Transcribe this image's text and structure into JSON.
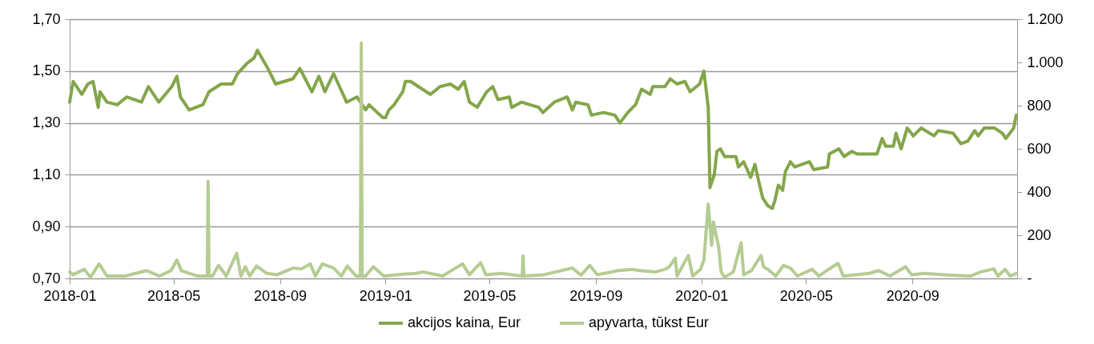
{
  "chart_data": {
    "type": "line",
    "legend": "bottom",
    "grid": "y",
    "line_style": "solid",
    "xlim": [
      "2018-01-01",
      "2020-12-31"
    ],
    "xticks": [
      "2018-01",
      "2018-05",
      "2018-09",
      "2019-01",
      "2019-05",
      "2019-09",
      "2020-01",
      "2020-05",
      "2020-09"
    ],
    "ylim": [
      0.7,
      1.7
    ],
    "yticks": [
      {
        "value": 0.7,
        "label": "0,70"
      },
      {
        "value": 0.9,
        "label": "0,90"
      },
      {
        "value": 1.1,
        "label": "1,10"
      },
      {
        "value": 1.3,
        "label": "1,30"
      },
      {
        "value": 1.5,
        "label": "1,50"
      },
      {
        "value": 1.7,
        "label": "1,70"
      }
    ],
    "y2lim": [
      0,
      1200
    ],
    "y2ticks": [
      {
        "value": 0,
        "label": "-"
      },
      200,
      400,
      600,
      800,
      {
        "value": 1000,
        "label": "1.000"
      },
      {
        "value": 1200,
        "label": "1.200"
      }
    ],
    "series": [
      {
        "name": "akcijos kaina, Eur",
        "color": "#84a64b",
        "x": [
          "2018-01-01",
          "2018-01-05",
          "2018-01-15",
          "2018-01-22",
          "2018-01-28",
          "2018-02-03",
          "2018-02-05",
          "2018-02-13",
          "2018-02-25",
          "2018-03-08",
          "2018-03-25",
          "2018-04-02",
          "2018-04-14",
          "2018-04-29",
          "2018-05-05",
          "2018-05-09",
          "2018-05-19",
          "2018-06-04",
          "2018-06-11",
          "2018-06-25",
          "2018-07-08",
          "2018-07-14",
          "2018-07-25",
          "2018-08-02",
          "2018-08-06",
          "2018-08-18",
          "2018-08-27",
          "2018-09-16",
          "2018-09-24",
          "2018-10-08",
          "2018-10-16",
          "2018-10-23",
          "2018-11-02",
          "2018-11-17",
          "2018-11-29",
          "2018-12-09",
          "2018-12-13",
          "2018-12-29",
          "2019-01-01",
          "2019-01-05",
          "2019-01-11",
          "2019-01-21",
          "2019-01-24",
          "2019-01-30",
          "2019-02-08",
          "2019-02-22",
          "2019-03-05",
          "2019-03-17",
          "2019-03-26",
          "2019-04-02",
          "2019-04-08",
          "2019-04-17",
          "2019-04-28",
          "2019-05-05",
          "2019-05-11",
          "2019-05-24",
          "2019-05-27",
          "2019-06-07",
          "2019-06-27",
          "2019-07-02",
          "2019-07-15",
          "2019-07-30",
          "2019-08-05",
          "2019-08-09",
          "2019-08-23",
          "2019-08-27",
          "2019-09-10",
          "2019-09-23",
          "2019-09-29",
          "2019-10-08",
          "2019-10-17",
          "2019-10-24",
          "2019-11-03",
          "2019-11-06",
          "2019-11-20",
          "2019-11-26",
          "2019-12-04",
          "2019-12-13",
          "2019-12-19",
          "2019-12-30",
          "2020-01-04",
          "2020-01-09",
          "2020-01-11",
          "2020-01-16",
          "2020-01-19",
          "2020-01-23",
          "2020-01-28",
          "2020-02-10",
          "2020-02-13",
          "2020-02-19",
          "2020-02-27",
          "2020-03-03",
          "2020-03-07",
          "2020-03-12",
          "2020-03-18",
          "2020-03-23",
          "2020-03-26",
          "2020-03-30",
          "2020-04-04",
          "2020-04-07",
          "2020-04-13",
          "2020-04-18",
          "2020-05-05",
          "2020-05-10",
          "2020-05-26",
          "2020-05-28",
          "2020-06-08",
          "2020-06-14",
          "2020-06-23",
          "2020-06-29",
          "2020-07-22",
          "2020-07-28",
          "2020-08-01",
          "2020-08-10",
          "2020-08-13",
          "2020-08-19",
          "2020-08-26",
          "2020-09-02",
          "2020-09-11",
          "2020-09-26",
          "2020-10-01",
          "2020-10-18",
          "2020-10-27",
          "2020-11-04",
          "2020-11-12",
          "2020-11-16",
          "2020-11-23",
          "2020-12-05",
          "2020-12-14",
          "2020-12-18",
          "2020-12-27",
          "2020-12-30"
        ],
        "values": [
          1.38,
          1.46,
          1.41,
          1.45,
          1.46,
          1.36,
          1.42,
          1.38,
          1.37,
          1.4,
          1.38,
          1.44,
          1.38,
          1.44,
          1.48,
          1.4,
          1.35,
          1.37,
          1.42,
          1.45,
          1.45,
          1.49,
          1.53,
          1.55,
          1.58,
          1.51,
          1.45,
          1.47,
          1.51,
          1.42,
          1.48,
          1.42,
          1.49,
          1.38,
          1.4,
          1.35,
          1.37,
          1.32,
          1.32,
          1.35,
          1.37,
          1.42,
          1.46,
          1.46,
          1.44,
          1.41,
          1.44,
          1.45,
          1.43,
          1.46,
          1.38,
          1.36,
          1.42,
          1.44,
          1.39,
          1.4,
          1.36,
          1.38,
          1.36,
          1.34,
          1.38,
          1.4,
          1.35,
          1.38,
          1.37,
          1.33,
          1.34,
          1.33,
          1.3,
          1.34,
          1.37,
          1.43,
          1.41,
          1.44,
          1.44,
          1.47,
          1.45,
          1.46,
          1.42,
          1.45,
          1.5,
          1.36,
          1.05,
          1.1,
          1.19,
          1.2,
          1.17,
          1.17,
          1.13,
          1.15,
          1.09,
          1.14,
          1.08,
          1.01,
          0.98,
          0.97,
          1.0,
          1.06,
          1.04,
          1.11,
          1.15,
          1.13,
          1.15,
          1.12,
          1.13,
          1.18,
          1.2,
          1.17,
          1.19,
          1.18,
          1.18,
          1.24,
          1.21,
          1.21,
          1.26,
          1.2,
          1.28,
          1.25,
          1.28,
          1.25,
          1.27,
          1.26,
          1.22,
          1.23,
          1.27,
          1.25,
          1.28,
          1.28,
          1.26,
          1.24,
          1.28,
          1.33
        ]
      },
      {
        "name": "apyvarta, tūkst Eur",
        "color": "#b5cc92",
        "axis": "y2",
        "x": [
          "2018-01-01",
          "2018-01-05",
          "2018-01-18",
          "2018-01-25",
          "2018-02-04",
          "2018-02-13",
          "2018-03-06",
          "2018-03-31",
          "2018-04-15",
          "2018-04-28",
          "2018-05-05",
          "2018-05-10",
          "2018-05-29",
          "2018-06-09",
          "2018-06-10",
          "2018-06-11",
          "2018-06-15",
          "2018-06-22",
          "2018-07-01",
          "2018-07-13",
          "2018-07-18",
          "2018-07-23",
          "2018-07-28",
          "2018-08-05",
          "2018-08-17",
          "2018-08-29",
          "2018-09-16",
          "2018-09-26",
          "2018-10-06",
          "2018-10-12",
          "2018-10-20",
          "2018-11-02",
          "2018-11-11",
          "2018-11-18",
          "2018-11-28",
          "2018-12-03",
          "2018-12-04",
          "2018-12-05",
          "2018-12-09",
          "2018-12-18",
          "2018-12-30",
          "2019-01-24",
          "2019-02-05",
          "2019-02-13",
          "2019-03-08",
          "2019-03-31",
          "2019-04-08",
          "2019-04-21",
          "2019-04-27",
          "2019-05-15",
          "2019-06-08",
          "2019-06-09",
          "2019-06-10",
          "2019-07-03",
          "2019-08-05",
          "2019-08-15",
          "2019-08-25",
          "2019-09-03",
          "2019-09-27",
          "2019-10-13",
          "2019-10-22",
          "2019-11-09",
          "2019-11-20",
          "2019-11-25",
          "2019-12-02",
          "2019-12-04",
          "2019-12-17",
          "2019-12-22",
          "2019-12-31",
          "2020-01-04",
          "2020-01-09",
          "2020-01-13",
          "2020-01-15",
          "2020-01-18",
          "2020-01-21",
          "2020-01-24",
          "2020-01-28",
          "2020-02-07",
          "2020-02-16",
          "2020-02-19",
          "2020-02-28",
          "2020-03-10",
          "2020-03-13",
          "2020-03-18",
          "2020-03-27",
          "2020-04-05",
          "2020-04-13",
          "2020-04-21",
          "2020-05-08",
          "2020-05-16",
          "2020-05-26",
          "2020-06-07",
          "2020-06-13",
          "2020-07-13",
          "2020-07-24",
          "2020-08-06",
          "2020-08-24",
          "2020-08-31",
          "2020-09-15",
          "2020-10-07",
          "2020-11-07",
          "2020-11-19",
          "2020-12-04",
          "2020-12-09",
          "2020-12-17",
          "2020-12-23",
          "2020-12-30"
        ],
        "values": [
          30,
          17,
          42,
          5,
          67,
          11,
          11,
          36,
          11,
          36,
          85,
          36,
          11,
          11,
          449,
          11,
          11,
          60,
          11,
          116,
          11,
          54,
          11,
          57,
          23,
          17,
          48,
          44,
          67,
          11,
          67,
          48,
          11,
          57,
          11,
          11,
          1090,
          11,
          11,
          54,
          11,
          20,
          23,
          30,
          11,
          67,
          17,
          73,
          17,
          23,
          11,
          104,
          11,
          17,
          48,
          15,
          60,
          17,
          36,
          42,
          36,
          30,
          42,
          54,
          94,
          11,
          106,
          11,
          42,
          85,
          344,
          153,
          262,
          202,
          147,
          30,
          5,
          30,
          165,
          17,
          36,
          106,
          54,
          42,
          11,
          60,
          48,
          11,
          42,
          11,
          39,
          70,
          11,
          23,
          36,
          11,
          54,
          17,
          23,
          17,
          11,
          30,
          44,
          11,
          42,
          11,
          23
        ]
      }
    ]
  }
}
